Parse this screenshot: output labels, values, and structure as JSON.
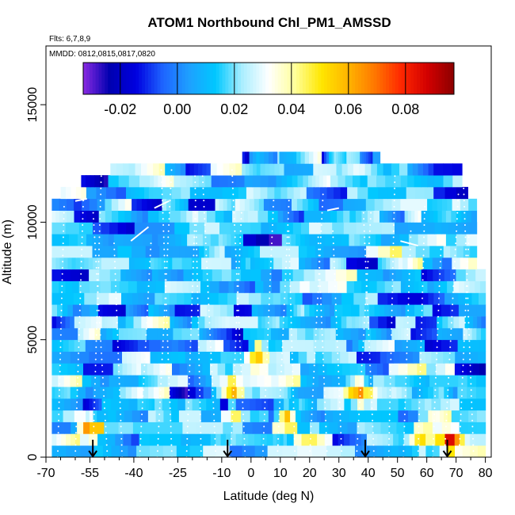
{
  "chart_data": {
    "type": "heatmap",
    "title": "ATOM1 Northbound Chl_PM1_AMSSD",
    "subtitle_flights": "Flts: 6,7,8,9",
    "subtitle_dates": "MMDD: 0812,0815,0817,0820",
    "xlabel": "Latitude (deg N)",
    "ylabel": "Altitude (m)",
    "xlim": [
      -70,
      82
    ],
    "ylim": [
      0,
      17500
    ],
    "x_ticks": [
      -70,
      -55,
      -40,
      -25,
      -10,
      0,
      10,
      20,
      30,
      40,
      50,
      60,
      70,
      80
    ],
    "x_tick_labels": [
      "-70",
      "-55",
      "-40",
      "-25",
      "-10",
      "0",
      "10",
      "20",
      "30",
      "40",
      "50",
      "60",
      "70",
      "80"
    ],
    "y_ticks": [
      0,
      5000,
      10000,
      15000
    ],
    "y_tick_labels": [
      "0",
      "5000",
      "10000",
      "15000"
    ],
    "colorbar": {
      "range": [
        -0.033,
        0.097
      ],
      "ticks": [
        -0.02,
        0.0,
        0.02,
        0.04,
        0.06,
        0.08
      ],
      "tick_labels": [
        "-0.02",
        "0.00",
        "0.02",
        "0.04",
        "0.06",
        "0.08"
      ],
      "colors": [
        "#8a2be2",
        "#0000b0",
        "#0000e0",
        "#1e64ff",
        "#1ea0ff",
        "#00c8ff",
        "#aaeeff",
        "#ffffff",
        "#ffff99",
        "#ffe600",
        "#ffb400",
        "#ff7800",
        "#ff2800",
        "#d20000",
        "#8c0000"
      ]
    },
    "sounding_markers_lat": [
      -54,
      -8,
      39,
      67
    ],
    "grid": false,
    "legend": "colorbar top inside plot"
  }
}
